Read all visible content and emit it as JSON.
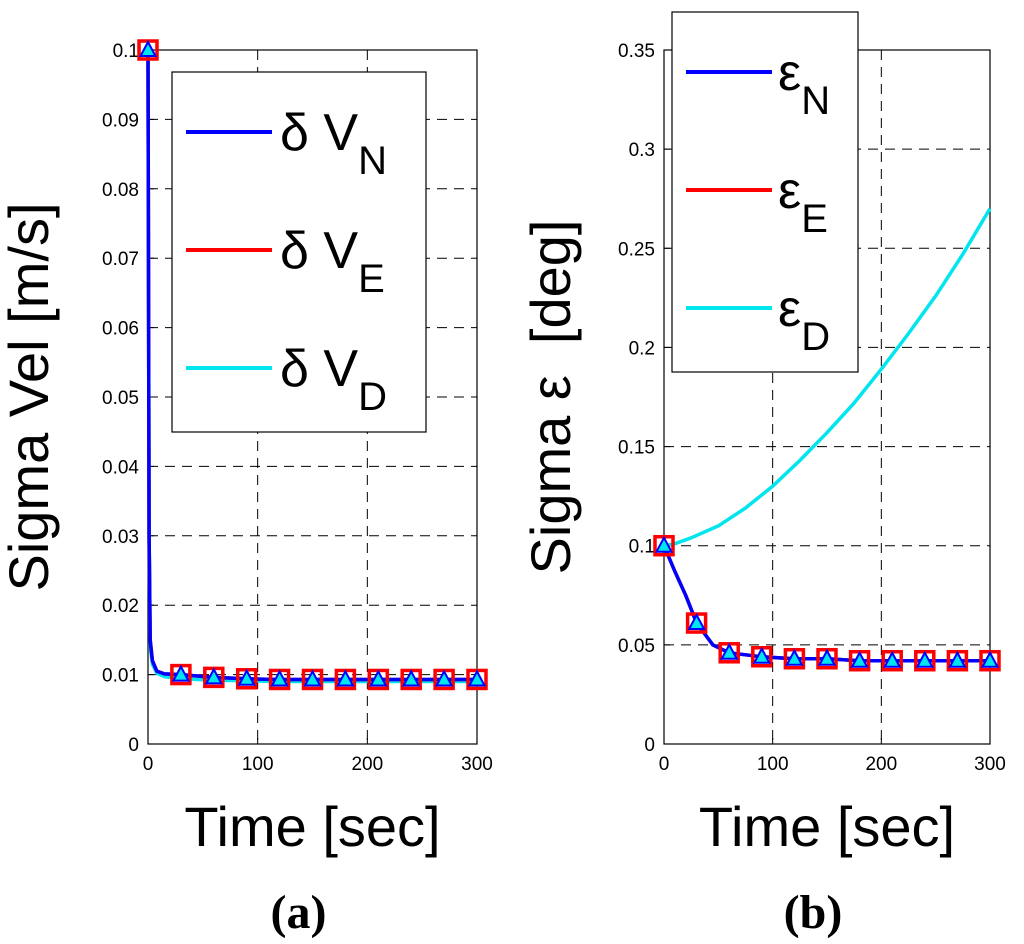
{
  "chart_data": [
    {
      "type": "line",
      "panel_label": "(a)",
      "xlabel": "Time [sec]",
      "ylabel": "Sigma Vel [m/s]",
      "xlim": [
        0,
        300
      ],
      "ylim": [
        0,
        0.1
      ],
      "xticks": [
        "0",
        "100",
        "200",
        "300"
      ],
      "yticks": [
        "0",
        "0.01",
        "0.02",
        "0.03",
        "0.04",
        "0.05",
        "0.06",
        "0.07",
        "0.08",
        "0.09",
        "0.1"
      ],
      "grid": true,
      "legend_position": "top-right",
      "series": [
        {
          "name": "δ V",
          "subscript": "N",
          "color": "#0000ff",
          "marker": "triangle",
          "x": [
            0,
            1,
            2,
            4,
            8,
            15,
            30,
            60,
            90,
            120,
            150,
            180,
            210,
            240,
            270,
            300
          ],
          "y": [
            0.1,
            0.03,
            0.015,
            0.012,
            0.0105,
            0.0101,
            0.01,
            0.0096,
            0.0094,
            0.0093,
            0.0093,
            0.0093,
            0.0093,
            0.0093,
            0.0093,
            0.0093
          ]
        },
        {
          "name": "δ V",
          "subscript": "E",
          "color": "#ff0000",
          "marker": "square",
          "x": [
            0,
            1,
            2,
            4,
            8,
            15,
            30,
            60,
            90,
            120,
            150,
            180,
            210,
            240,
            270,
            300
          ],
          "y": [
            0.1,
            0.03,
            0.015,
            0.012,
            0.0105,
            0.0101,
            0.01,
            0.0096,
            0.0094,
            0.0093,
            0.0093,
            0.0093,
            0.0093,
            0.0093,
            0.0093,
            0.0093
          ]
        },
        {
          "name": "δ V",
          "subscript": "D",
          "color": "#00e5ee",
          "marker": "none",
          "x": [
            0,
            1,
            2,
            4,
            8,
            15,
            30,
            60,
            90,
            120,
            150,
            180,
            210,
            240,
            270,
            300
          ],
          "y": [
            0.1,
            0.03,
            0.014,
            0.0115,
            0.0102,
            0.0097,
            0.0094,
            0.0092,
            0.0091,
            0.009,
            0.009,
            0.009,
            0.009,
            0.009,
            0.009,
            0.009
          ]
        }
      ]
    },
    {
      "type": "line",
      "panel_label": "(b)",
      "xlabel": "Time [sec]",
      "ylabel": "Sigma ε  [deg]",
      "xlim": [
        0,
        300
      ],
      "ylim": [
        0,
        0.35
      ],
      "xticks": [
        "0",
        "100",
        "200",
        "300"
      ],
      "yticks": [
        "0",
        "0.05",
        "0.1",
        "0.15",
        "0.2",
        "0.25",
        "0.3",
        "0.35"
      ],
      "grid": true,
      "legend_position": "top-left",
      "series": [
        {
          "name": "ε",
          "subscript": "N",
          "color": "#0000ff",
          "marker": "triangle",
          "x": [
            0,
            10,
            20,
            30,
            45,
            60,
            90,
            120,
            150,
            180,
            210,
            240,
            270,
            300
          ],
          "y": [
            0.1,
            0.087,
            0.075,
            0.061,
            0.05,
            0.046,
            0.044,
            0.043,
            0.043,
            0.042,
            0.042,
            0.042,
            0.042,
            0.042
          ]
        },
        {
          "name": "ε",
          "subscript": "E",
          "color": "#ff0000",
          "marker": "square",
          "x": [
            0,
            10,
            20,
            30,
            45,
            60,
            90,
            120,
            150,
            180,
            210,
            240,
            270,
            300
          ],
          "y": [
            0.1,
            0.087,
            0.075,
            0.061,
            0.05,
            0.046,
            0.044,
            0.043,
            0.043,
            0.042,
            0.042,
            0.042,
            0.042,
            0.042
          ]
        },
        {
          "name": "ε",
          "subscript": "D",
          "color": "#00e5ee",
          "marker": "none",
          "x": [
            0,
            10,
            25,
            50,
            75,
            100,
            125,
            150,
            175,
            200,
            225,
            250,
            275,
            300
          ],
          "y": [
            0.1,
            0.101,
            0.104,
            0.11,
            0.119,
            0.13,
            0.143,
            0.157,
            0.172,
            0.189,
            0.207,
            0.226,
            0.247,
            0.27
          ]
        }
      ]
    }
  ]
}
